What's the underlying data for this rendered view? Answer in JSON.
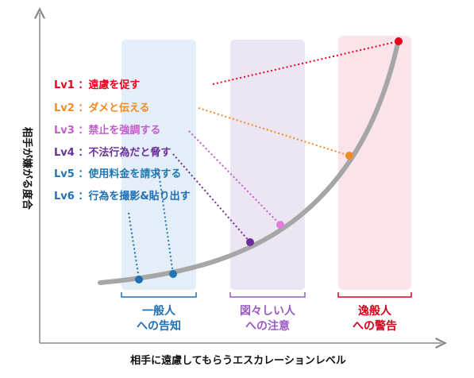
{
  "axes": {
    "x_label": "相手に遠慮してもらうエスカレーションレベル",
    "y_label": "相手が嫌がる度合"
  },
  "zones": [
    {
      "line1": "一般人",
      "line2": "への告知",
      "fill": "#e4eef8",
      "color": "#1f6fb5"
    },
    {
      "line1": "図々しい人",
      "line2": "への注意",
      "fill": "#ece6f3",
      "color": "#9b59c7"
    },
    {
      "line1": "逸般人",
      "line2": "への警告",
      "fill": "#fbe3ea",
      "color": "#d0021b"
    }
  ],
  "levels": [
    {
      "text": "Lv6 ：行為を撮影&貼り出す",
      "color": "#e8001c"
    },
    {
      "text": "Lv5 ：使用料金を請求する",
      "color": "#f08a24"
    },
    {
      "text": "Lv4 ：不法行為だと脅す",
      "color": "#c55ad3"
    },
    {
      "text": "Lv3 ：禁止を強調する",
      "color": "#6a2e9c"
    },
    {
      "text": "Lv2 ：ダメと伝える",
      "color": "#1f78b4"
    },
    {
      "text": "Lv1 ：遠慮を促す",
      "color": "#1f6fb5"
    }
  ],
  "colors": {
    "curve": "#a6a6a6",
    "axis": "#888888"
  }
}
